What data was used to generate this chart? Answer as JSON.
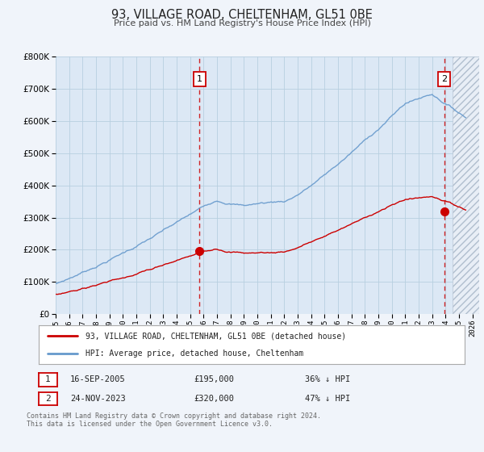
{
  "title": "93, VILLAGE ROAD, CHELTENHAM, GL51 0BE",
  "subtitle": "Price paid vs. HM Land Registry's House Price Index (HPI)",
  "bg_color": "#f0f4fa",
  "plot_bg_color": "#dce8f5",
  "grid_color": "#b8cfe0",
  "hpi_color": "#6699cc",
  "price_color": "#cc0000",
  "sale1_year": 2005.708,
  "sale1_price": 195000,
  "sale2_year": 2023.899,
  "sale2_price": 320000,
  "xmin": 1995.0,
  "xmax": 2026.5,
  "ymin": 0,
  "ymax": 800000,
  "yticks": [
    0,
    100000,
    200000,
    300000,
    400000,
    500000,
    600000,
    700000,
    800000
  ],
  "legend_line1": "93, VILLAGE ROAD, CHELTENHAM, GL51 0BE (detached house)",
  "legend_line2": "HPI: Average price, detached house, Cheltenham",
  "table_row1_num": "1",
  "table_row1_date": "16-SEP-2005",
  "table_row1_price": "£195,000",
  "table_row1_hpi": "36% ↓ HPI",
  "table_row2_num": "2",
  "table_row2_date": "24-NOV-2023",
  "table_row2_price": "£320,000",
  "table_row2_hpi": "47% ↓ HPI",
  "footer": "Contains HM Land Registry data © Crown copyright and database right 2024.\nThis data is licensed under the Open Government Licence v3.0.",
  "hatch_right_start": 2024.5
}
